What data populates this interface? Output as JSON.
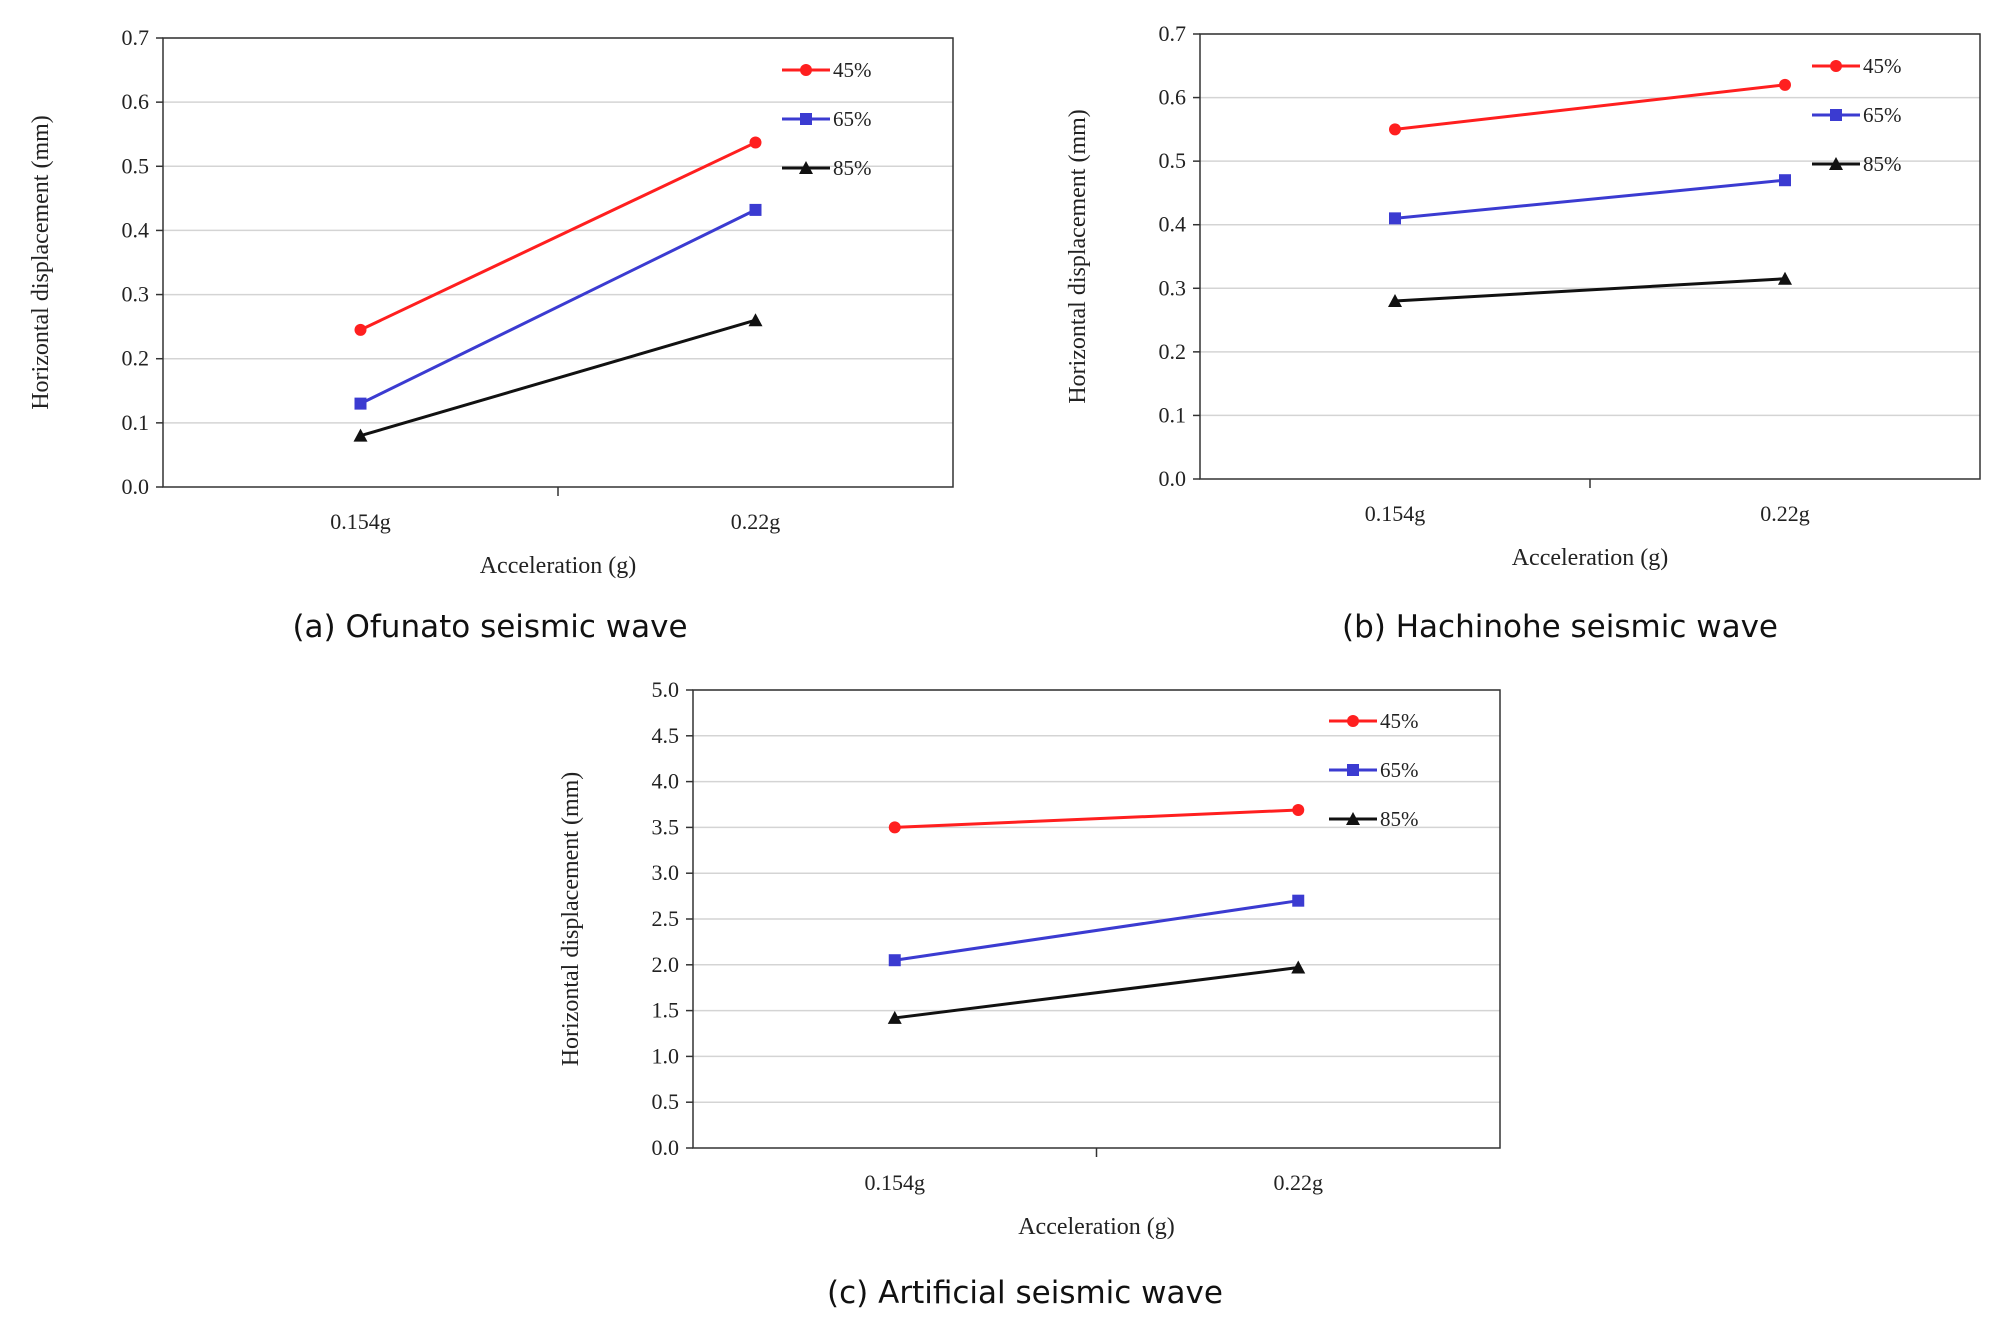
{
  "chart_data": [
    {
      "type": "line",
      "panel": "a",
      "caption": "(a) Ofunato seismic wave",
      "xlabel": "Acceleration (g)",
      "ylabel": "Horizontal displacement (mm)",
      "categories": [
        "0.154g",
        "0.22g"
      ],
      "ylim": [
        0,
        0.7
      ],
      "ystep": 0.1,
      "ydecimals": 1,
      "grid": true,
      "legend_position": "top-right",
      "series": [
        {
          "name": "45%",
          "color": "#ff1f1f",
          "marker": "circle",
          "values": [
            0.245,
            0.537
          ]
        },
        {
          "name": "65%",
          "color": "#3b3bd1",
          "marker": "square",
          "values": [
            0.13,
            0.432
          ]
        },
        {
          "name": "85%",
          "color": "#111111",
          "marker": "triangle",
          "values": [
            0.08,
            0.26
          ]
        }
      ]
    },
    {
      "type": "line",
      "panel": "b",
      "caption": "(b) Hachinohe seismic wave",
      "xlabel": "Acceleration (g)",
      "ylabel": "Horizontal displacement (mm)",
      "categories": [
        "0.154g",
        "0.22g"
      ],
      "ylim": [
        0,
        0.7
      ],
      "ystep": 0.1,
      "ydecimals": 1,
      "grid": true,
      "legend_position": "top-right",
      "series": [
        {
          "name": "45%",
          "color": "#ff1f1f",
          "marker": "circle",
          "values": [
            0.55,
            0.62
          ]
        },
        {
          "name": "65%",
          "color": "#3b3bd1",
          "marker": "square",
          "values": [
            0.41,
            0.47
          ]
        },
        {
          "name": "85%",
          "color": "#111111",
          "marker": "triangle",
          "values": [
            0.28,
            0.315
          ]
        }
      ]
    },
    {
      "type": "line",
      "panel": "c",
      "caption": "(c) Artificial seismic wave",
      "xlabel": "Acceleration (g)",
      "ylabel": "Horizontal displacement (mm)",
      "categories": [
        "0.154g",
        "0.22g"
      ],
      "ylim": [
        0,
        5.0
      ],
      "ystep": 0.5,
      "ydecimals": 1,
      "grid": true,
      "legend_position": "top-right",
      "series": [
        {
          "name": "45%",
          "color": "#ff1f1f",
          "marker": "circle",
          "values": [
            3.5,
            3.69
          ]
        },
        {
          "name": "65%",
          "color": "#3b3bd1",
          "marker": "square",
          "values": [
            2.05,
            2.7
          ]
        },
        {
          "name": "85%",
          "color": "#111111",
          "marker": "triangle",
          "values": [
            1.42,
            1.97
          ]
        }
      ]
    }
  ]
}
